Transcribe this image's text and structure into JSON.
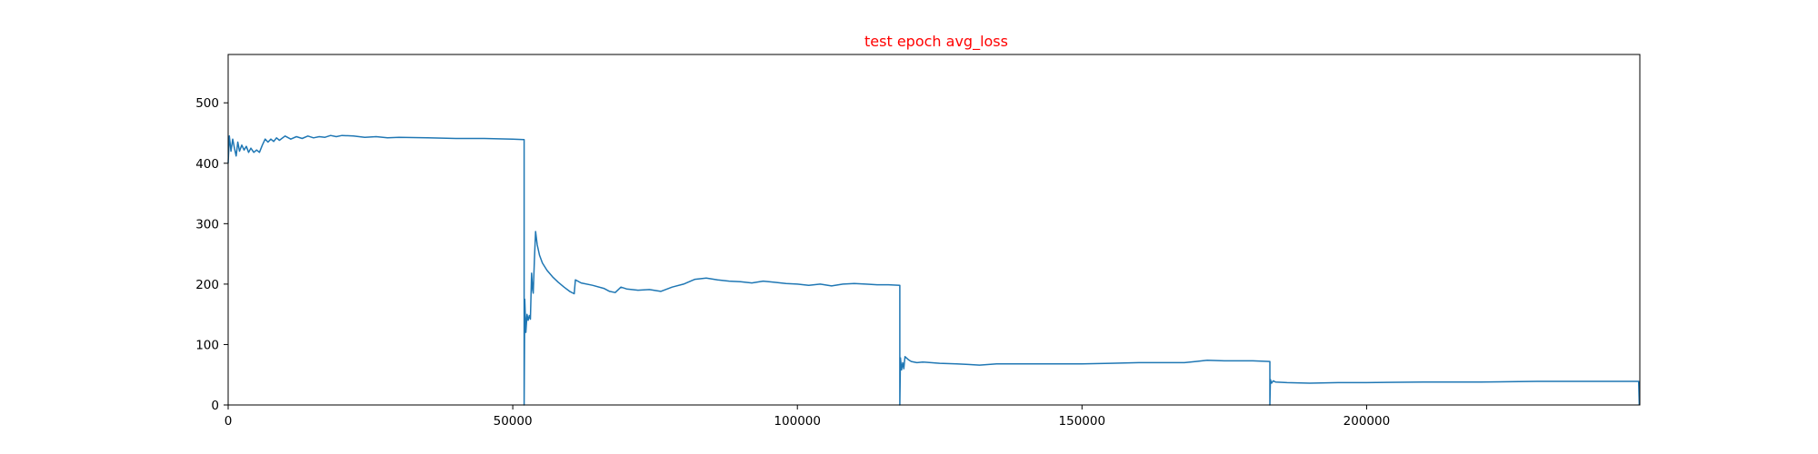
{
  "chart_data": {
    "type": "line",
    "title": "test epoch avg_loss",
    "title_color": "#ff0000",
    "line_color": "#1f77b4",
    "xlabel": "",
    "ylabel": "",
    "xlim": [
      0,
      248000
    ],
    "ylim": [
      0,
      580
    ],
    "grid": false,
    "x_ticks": [
      0,
      50000,
      100000,
      150000,
      200000
    ],
    "y_ticks": [
      0,
      100,
      200,
      300,
      400,
      500
    ],
    "series": [
      {
        "points": [
          [
            0,
            400
          ],
          [
            200,
            445
          ],
          [
            500,
            420
          ],
          [
            800,
            440
          ],
          [
            1100,
            425
          ],
          [
            1400,
            412
          ],
          [
            1700,
            435
          ],
          [
            2000,
            420
          ],
          [
            2400,
            430
          ],
          [
            2800,
            422
          ],
          [
            3200,
            428
          ],
          [
            3600,
            418
          ],
          [
            4000,
            425
          ],
          [
            4500,
            418
          ],
          [
            5000,
            422
          ],
          [
            5500,
            418
          ],
          [
            6000,
            430
          ],
          [
            6500,
            440
          ],
          [
            7000,
            435
          ],
          [
            7500,
            440
          ],
          [
            8000,
            436
          ],
          [
            8500,
            442
          ],
          [
            9000,
            438
          ],
          [
            10000,
            445
          ],
          [
            11000,
            440
          ],
          [
            12000,
            444
          ],
          [
            13000,
            441
          ],
          [
            14000,
            445
          ],
          [
            15000,
            442
          ],
          [
            16000,
            444
          ],
          [
            17000,
            443
          ],
          [
            18000,
            446
          ],
          [
            19000,
            444
          ],
          [
            20000,
            446
          ],
          [
            22000,
            445
          ],
          [
            24000,
            443
          ],
          [
            26000,
            444
          ],
          [
            28000,
            442
          ],
          [
            30000,
            443
          ],
          [
            35000,
            442
          ],
          [
            40000,
            441
          ],
          [
            45000,
            441
          ],
          [
            50000,
            440
          ],
          [
            52000,
            439
          ],
          [
            52000,
            0
          ],
          [
            52100,
            175
          ],
          [
            52300,
            120
          ],
          [
            52500,
            150
          ],
          [
            52700,
            140
          ],
          [
            52900,
            148
          ],
          [
            53100,
            142
          ],
          [
            53300,
            218
          ],
          [
            53500,
            190
          ],
          [
            53600,
            185
          ],
          [
            53800,
            240
          ],
          [
            54000,
            287
          ],
          [
            54300,
            265
          ],
          [
            54700,
            248
          ],
          [
            55200,
            235
          ],
          [
            56000,
            223
          ],
          [
            57000,
            212
          ],
          [
            58000,
            203
          ],
          [
            59000,
            195
          ],
          [
            60000,
            188
          ],
          [
            60800,
            184
          ],
          [
            61000,
            207
          ],
          [
            62000,
            202
          ],
          [
            64000,
            198
          ],
          [
            66000,
            193
          ],
          [
            67000,
            188
          ],
          [
            68000,
            186
          ],
          [
            69000,
            195
          ],
          [
            70000,
            192
          ],
          [
            72000,
            190
          ],
          [
            74000,
            191
          ],
          [
            76000,
            188
          ],
          [
            78000,
            195
          ],
          [
            80000,
            200
          ],
          [
            82000,
            208
          ],
          [
            84000,
            210
          ],
          [
            86000,
            207
          ],
          [
            88000,
            205
          ],
          [
            90000,
            204
          ],
          [
            92000,
            202
          ],
          [
            94000,
            205
          ],
          [
            96000,
            203
          ],
          [
            98000,
            201
          ],
          [
            100000,
            200
          ],
          [
            102000,
            198
          ],
          [
            104000,
            200
          ],
          [
            106000,
            197
          ],
          [
            108000,
            200
          ],
          [
            110000,
            201
          ],
          [
            112000,
            200
          ],
          [
            114000,
            199
          ],
          [
            116000,
            199
          ],
          [
            118000,
            198
          ],
          [
            118000,
            0
          ],
          [
            118100,
            78
          ],
          [
            118300,
            58
          ],
          [
            118500,
            70
          ],
          [
            118700,
            60
          ],
          [
            118900,
            80
          ],
          [
            119500,
            75
          ],
          [
            120000,
            72
          ],
          [
            121000,
            70
          ],
          [
            122000,
            71
          ],
          [
            125000,
            69
          ],
          [
            128000,
            68
          ],
          [
            130000,
            67
          ],
          [
            132000,
            66
          ],
          [
            135000,
            68
          ],
          [
            140000,
            68
          ],
          [
            145000,
            68
          ],
          [
            150000,
            68
          ],
          [
            155000,
            69
          ],
          [
            160000,
            70
          ],
          [
            165000,
            70
          ],
          [
            168000,
            70
          ],
          [
            170000,
            72
          ],
          [
            172000,
            74
          ],
          [
            175000,
            73
          ],
          [
            180000,
            73
          ],
          [
            183000,
            72
          ],
          [
            183000,
            0
          ],
          [
            183100,
            42
          ],
          [
            183300,
            36
          ],
          [
            183600,
            40
          ],
          [
            184000,
            38
          ],
          [
            186000,
            37
          ],
          [
            190000,
            36
          ],
          [
            195000,
            37
          ],
          [
            200000,
            37
          ],
          [
            210000,
            38
          ],
          [
            220000,
            38
          ],
          [
            230000,
            39
          ],
          [
            240000,
            39
          ],
          [
            247800,
            39
          ],
          [
            247900,
            0
          ]
        ]
      }
    ]
  }
}
